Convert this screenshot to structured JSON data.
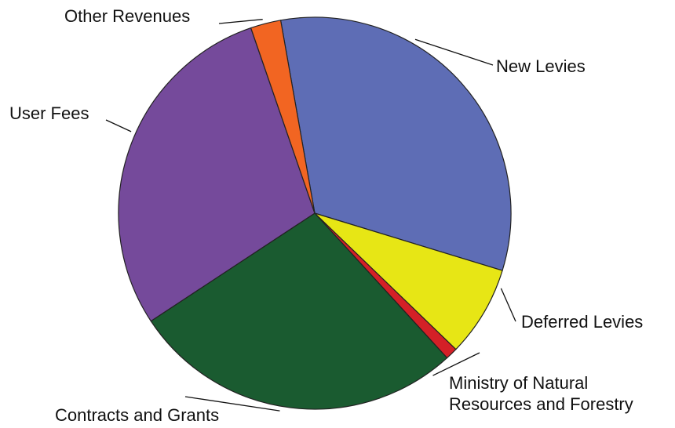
{
  "chart_data": {
    "type": "pie",
    "title": "",
    "start_angle_deg": 100,
    "direction": "clockwise",
    "slices": [
      {
        "label": "New Levies",
        "value": 32.5,
        "color": "#5e6db5"
      },
      {
        "label": "Deferred Levies",
        "value": 7.5,
        "color": "#e7e615"
      },
      {
        "label_lines": [
          "Ministry of Natural",
          "Resources and Forestry"
        ],
        "value": 1.0,
        "color": "#d42027"
      },
      {
        "label": "Contracts and Grants",
        "value": 27.5,
        "color": "#1a5b30"
      },
      {
        "label": "User Fees",
        "value": 29.0,
        "color": "#754a9b"
      },
      {
        "label": "Other Revenues",
        "value": 2.5,
        "color": "#f26522"
      }
    ]
  }
}
